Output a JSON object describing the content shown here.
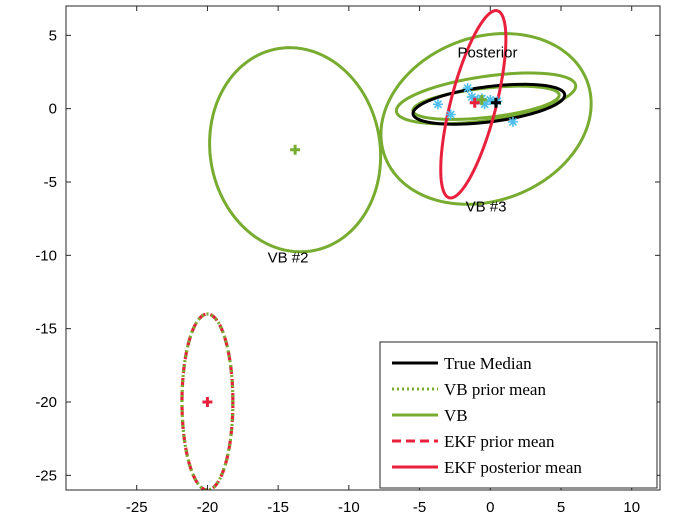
{
  "chart_data": {
    "type": "scatter",
    "title": "",
    "xlabel": "",
    "ylabel": "",
    "xlim": [
      -30,
      12
    ],
    "ylim": [
      -26,
      7
    ],
    "xticks": [
      -25,
      -20,
      -15,
      -10,
      -5,
      0,
      5,
      10
    ],
    "yticks": [
      5,
      0,
      -5,
      -10,
      -15,
      -20,
      -25
    ],
    "grid": false,
    "legend_placement": "bottom-right",
    "colors": {
      "true_median": "#000000",
      "vb": "#77AC30",
      "ekf": "#E8203C",
      "samples": "#4DBEEE"
    },
    "legend": [
      {
        "label": "True Median",
        "style": "solid",
        "color": "#000000"
      },
      {
        "label": "VB prior mean",
        "style": "dotted",
        "color": "#77AC30"
      },
      {
        "label": "VB",
        "style": "solid",
        "color": "#77AC30"
      },
      {
        "label": "EKF prior mean",
        "style": "dashed",
        "color": "#E8203C"
      },
      {
        "label": "EKF posterior mean",
        "style": "solid",
        "color": "#E8203C"
      }
    ],
    "annotations": [
      {
        "text": "Posterior",
        "x": -0.2,
        "y": 3.5
      },
      {
        "text": "VB #3",
        "x": -0.3,
        "y": -7.0
      },
      {
        "text": "VB #2",
        "x": -14.3,
        "y": -10.5
      }
    ],
    "ellipses": [
      {
        "name": "VB #2",
        "color": "#77AC30",
        "style": "solid",
        "cx": -13.8,
        "cy": -2.8,
        "rx": 6.0,
        "ry": 7.0,
        "angle": 12
      },
      {
        "name": "VB #3 outer",
        "color": "#77AC30",
        "style": "solid",
        "cx": -0.3,
        "cy": -0.7,
        "rx": 7.6,
        "ry": 5.6,
        "angle": 18
      },
      {
        "name": "VB #3 mid",
        "color": "#77AC30",
        "style": "solid",
        "cx": -0.3,
        "cy": 0.7,
        "rx": 6.4,
        "ry": 1.5,
        "angle": 8
      },
      {
        "name": "VB #3 inner",
        "color": "#77AC30",
        "style": "solid",
        "cx": -0.3,
        "cy": 0.4,
        "rx": 5.2,
        "ry": 1.0,
        "angle": 6
      },
      {
        "name": "Posterior",
        "color": "#000000",
        "style": "solid",
        "cx": -0.1,
        "cy": 0.3,
        "rx": 5.4,
        "ry": 1.2,
        "angle": 7
      },
      {
        "name": "EKF posterior",
        "color": "#E8203C",
        "style": "solid",
        "cx": -1.2,
        "cy": 0.3,
        "rx": 6.6,
        "ry": 1.6,
        "angle": 75
      },
      {
        "name": "EKF prior",
        "color": "#E8203C",
        "style": "dashed",
        "cx": -20,
        "cy": -20,
        "rx": 1.8,
        "ry": 6.0,
        "angle": 0
      },
      {
        "name": "VB prior",
        "color": "#77AC30",
        "style": "dotted",
        "cx": -20,
        "cy": -20,
        "rx": 1.8,
        "ry": 6.0,
        "angle": 0
      }
    ],
    "means": [
      {
        "name": "VB #2 mean",
        "color": "#77AC30",
        "x": -13.8,
        "y": -2.8
      },
      {
        "name": "prior mean",
        "color": "#E8203C",
        "x": -20,
        "y": -20
      },
      {
        "name": "VB #3 mean",
        "color": "#77AC30",
        "x": -0.6,
        "y": 0.6
      },
      {
        "name": "EKF posterior mean",
        "color": "#E8203C",
        "x": -1.1,
        "y": 0.4
      },
      {
        "name": "True median",
        "color": "#000000",
        "x": 0.4,
        "y": 0.4
      }
    ],
    "samples": [
      {
        "x": -3.7,
        "y": 0.3
      },
      {
        "x": -2.8,
        "y": -0.4
      },
      {
        "x": -1.6,
        "y": 1.4
      },
      {
        "x": -1.3,
        "y": 0.8
      },
      {
        "x": -0.9,
        "y": 0.6
      },
      {
        "x": -0.6,
        "y": 0.7
      },
      {
        "x": -0.4,
        "y": 0.3
      },
      {
        "x": 0.0,
        "y": 0.6
      },
      {
        "x": 0.5,
        "y": 0.5
      },
      {
        "x": 1.6,
        "y": -0.9
      }
    ]
  }
}
